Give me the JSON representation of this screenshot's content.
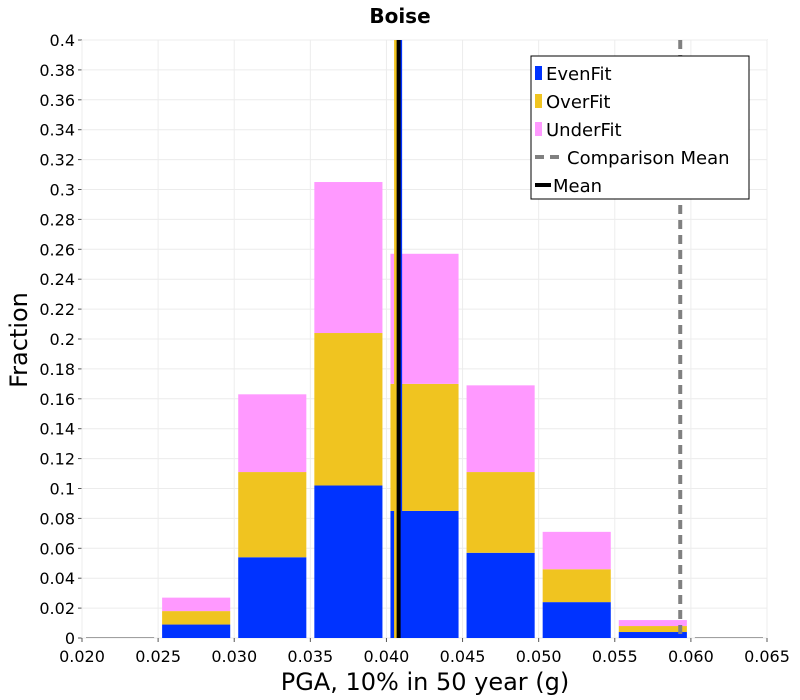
{
  "chart_data": {
    "type": "bar",
    "stacked": true,
    "title": "Boise",
    "xlabel": "PGA, 10% in 50 year (g)",
    "ylabel": "Fraction",
    "xlim": [
      0.02,
      0.065
    ],
    "ylim": [
      0,
      0.4
    ],
    "x_ticks": [
      "0.020",
      "0.025",
      "0.030",
      "0.035",
      "0.040",
      "0.045",
      "0.050",
      "0.055",
      "0.060",
      "0.065"
    ],
    "y_ticks": [
      "0",
      "0.02",
      "0.04",
      "0.06",
      "0.08",
      "0.1",
      "0.12",
      "0.14",
      "0.16",
      "0.18",
      "0.2",
      "0.22",
      "0.24",
      "0.26",
      "0.28",
      "0.3",
      "0.32",
      "0.34",
      "0.36",
      "0.38",
      "0.4"
    ],
    "bin_width": 0.005,
    "bin_centers": [
      0.0225,
      0.0275,
      0.0325,
      0.0375,
      0.0425,
      0.0475,
      0.0525,
      0.0575,
      0.0625
    ],
    "series": [
      {
        "name": "EvenFit",
        "color": "#0033ff",
        "values": [
          0,
          0.009,
          0.054,
          0.102,
          0.085,
          0.057,
          0.024,
          0.004,
          0
        ]
      },
      {
        "name": "OverFit",
        "color": "#f0c420",
        "values": [
          0,
          0.009,
          0.057,
          0.102,
          0.085,
          0.054,
          0.022,
          0.004,
          0
        ]
      },
      {
        "name": "UnderFit",
        "color": "#ff99ff",
        "values": [
          0,
          0.009,
          0.052,
          0.101,
          0.087,
          0.058,
          0.025,
          0.004,
          0
        ]
      }
    ],
    "mean_lines": [
      {
        "series": "UnderFit",
        "x": 0.0408,
        "color": "#ff99ff"
      },
      {
        "series": "OverFit",
        "x": 0.0407,
        "color": "#f0c420"
      },
      {
        "series": "EvenFit",
        "x": 0.0408,
        "color": "#0033ff"
      }
    ],
    "mean": 0.0408,
    "comparison_mean": 0.0593,
    "legend": {
      "placement": "top-right",
      "items": [
        {
          "label": "EvenFit",
          "kind": "box",
          "color": "#0033ff"
        },
        {
          "label": "OverFit",
          "kind": "box",
          "color": "#f0c420"
        },
        {
          "label": "UnderFit",
          "kind": "box",
          "color": "#ff99ff"
        },
        {
          "label": "Comparison Mean",
          "kind": "dashed-line",
          "color": "#808080"
        },
        {
          "label": "Mean",
          "kind": "line",
          "color": "#000000"
        }
      ]
    },
    "grid": true
  }
}
